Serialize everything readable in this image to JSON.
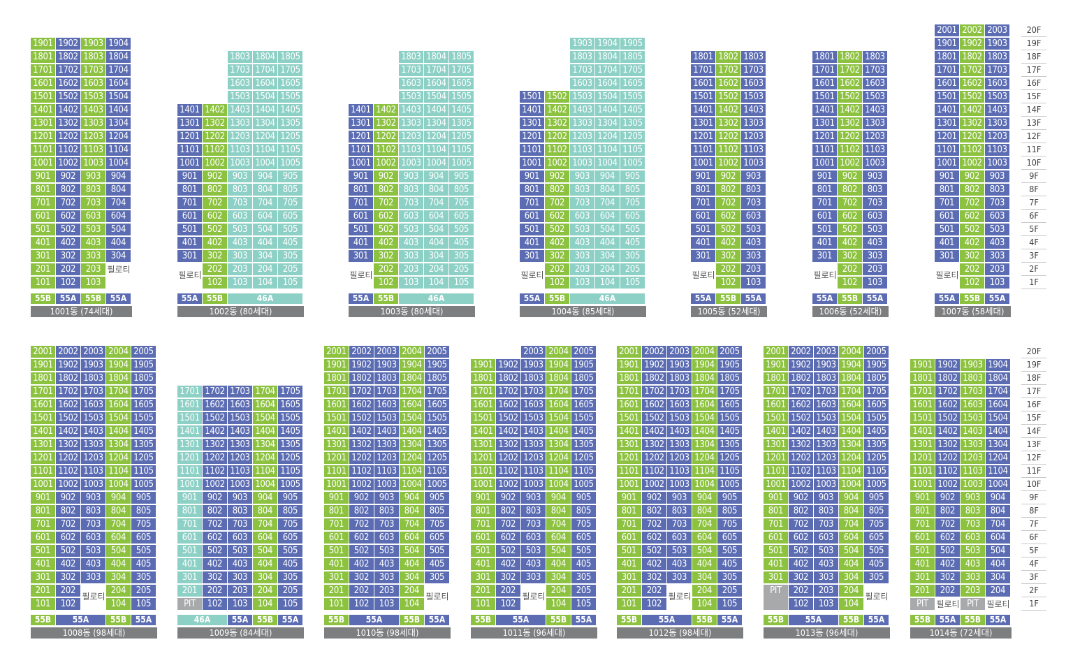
{
  "colors": {
    "g": "#8cc23f",
    "b": "#5b6cb3",
    "t": "#8dd0c5",
    "x": "#a7a9ab",
    "label_bg": "#7d7e80"
  },
  "labels": {
    "piloti": "필로티",
    "pit": "PIT"
  },
  "floor_labels": [
    "20F",
    "19F",
    "18F",
    "17F",
    "16F",
    "15F",
    "14F",
    "13F",
    "12F",
    "11F",
    "10F",
    "9F",
    "8F",
    "7F",
    "6F",
    "5F",
    "4F",
    "3F",
    "2F",
    "1F"
  ],
  "buildings": [
    {
      "name": "1001동 (74세대)",
      "cols": [
        "g",
        "b",
        "g",
        "b"
      ],
      "top": [
        19,
        19,
        19,
        19
      ],
      "bottom": [
        1,
        1,
        1,
        2
      ],
      "types": [
        {
          "t": "55B",
          "c": "g",
          "w": 1
        },
        {
          "t": "55A",
          "c": "b",
          "w": 1
        },
        {
          "t": "55B",
          "c": "g",
          "w": 1
        },
        {
          "t": "55A",
          "c": "b",
          "w": 1
        }
      ],
      "special": [
        {
          "f": 2,
          "c": 3,
          "k": "piloti"
        }
      ]
    },
    {
      "name": "1002동 (80세대)",
      "cols": [
        "b",
        "g",
        "t",
        "t",
        "t"
      ],
      "top": [
        14,
        14,
        18,
        18,
        18
      ],
      "bottom": [
        3,
        1,
        1,
        1,
        1
      ],
      "types": [
        {
          "t": "55A",
          "c": "b",
          "w": 1
        },
        {
          "t": "55B",
          "c": "g",
          "w": 1
        },
        {
          "t": "46A",
          "c": "t",
          "w": 3
        }
      ],
      "special": [
        {
          "f": 2,
          "c": 0,
          "k": "piloti"
        }
      ]
    },
    {
      "name": "1003동 (80세대)",
      "cols": [
        "b",
        "g",
        "t",
        "t",
        "t"
      ],
      "top": [
        14,
        14,
        18,
        18,
        18
      ],
      "bottom": [
        3,
        1,
        1,
        1,
        1
      ],
      "types": [
        {
          "t": "55A",
          "c": "b",
          "w": 1
        },
        {
          "t": "55B",
          "c": "g",
          "w": 1
        },
        {
          "t": "46A",
          "c": "t",
          "w": 3
        }
      ],
      "special": [
        {
          "f": 2,
          "c": 0,
          "k": "piloti"
        }
      ]
    },
    {
      "name": "1004동 (85세대)",
      "cols": [
        "b",
        "g",
        "t",
        "t",
        "t"
      ],
      "top": [
        15,
        15,
        19,
        19,
        19
      ],
      "bottom": [
        3,
        1,
        1,
        1,
        1
      ],
      "types": [
        {
          "t": "55A",
          "c": "b",
          "w": 1
        },
        {
          "t": "55B",
          "c": "g",
          "w": 1
        },
        {
          "t": "46A",
          "c": "t",
          "w": 3
        }
      ],
      "special": [
        {
          "f": 2,
          "c": 0,
          "k": "piloti"
        }
      ]
    },
    {
      "name": "1005동 (52세대)",
      "cols": [
        "b",
        "g",
        "b"
      ],
      "top": [
        18,
        18,
        18
      ],
      "bottom": [
        3,
        1,
        1
      ],
      "types": [
        {
          "t": "55A",
          "c": "b",
          "w": 1
        },
        {
          "t": "55B",
          "c": "g",
          "w": 1
        },
        {
          "t": "55A",
          "c": "b",
          "w": 1
        }
      ],
      "special": [
        {
          "f": 2,
          "c": 0,
          "k": "piloti"
        }
      ]
    },
    {
      "name": "1006동 (52세대)",
      "cols": [
        "b",
        "g",
        "b"
      ],
      "top": [
        18,
        18,
        18
      ],
      "bottom": [
        3,
        1,
        1
      ],
      "types": [
        {
          "t": "55A",
          "c": "b",
          "w": 1
        },
        {
          "t": "55B",
          "c": "g",
          "w": 1
        },
        {
          "t": "55A",
          "c": "b",
          "w": 1
        }
      ],
      "special": [
        {
          "f": 2,
          "c": 0,
          "k": "piloti"
        }
      ]
    },
    {
      "name": "1007동 (58세대)",
      "cols": [
        "b",
        "g",
        "b"
      ],
      "top": [
        20,
        20,
        20
      ],
      "bottom": [
        3,
        1,
        1
      ],
      "types": [
        {
          "t": "55A",
          "c": "b",
          "w": 1
        },
        {
          "t": "55B",
          "c": "g",
          "w": 1
        },
        {
          "t": "55A",
          "c": "b",
          "w": 1
        }
      ],
      "special": [
        {
          "f": 2,
          "c": 0,
          "k": "piloti"
        }
      ]
    },
    {
      "name": "1008동 (98세대)",
      "cols": [
        "g",
        "b",
        "b",
        "g",
        "b"
      ],
      "top": [
        20,
        20,
        20,
        20,
        20
      ],
      "bottom": [
        1,
        1,
        3,
        1,
        1
      ],
      "types": [
        {
          "t": "55B",
          "c": "g",
          "w": 1
        },
        {
          "t": "55A",
          "c": "b",
          "w": 2
        },
        {
          "t": "55B",
          "c": "g",
          "w": 1
        },
        {
          "t": "55A",
          "c": "b",
          "w": 1
        }
      ],
      "special": [
        {
          "f": 2,
          "c": 2,
          "k": "piloti"
        }
      ]
    },
    {
      "name": "1009동 (84세대)",
      "cols": [
        "t",
        "b",
        "b",
        "g",
        "b"
      ],
      "top": [
        17,
        17,
        17,
        17,
        17
      ],
      "bottom": [
        1,
        1,
        1,
        1,
        1
      ],
      "types": [
        {
          "t": "46A",
          "c": "t",
          "w": 2
        },
        {
          "t": "55A",
          "c": "b",
          "w": 1
        },
        {
          "t": "55B",
          "c": "g",
          "w": 1
        },
        {
          "t": "55A",
          "c": "b",
          "w": 1
        }
      ],
      "special": [
        {
          "f": 1,
          "c": 0,
          "k": "pit"
        }
      ]
    },
    {
      "name": "1010동 (98세대)",
      "cols": [
        "g",
        "b",
        "b",
        "g",
        "b"
      ],
      "top": [
        20,
        20,
        20,
        20,
        20
      ],
      "bottom": [
        1,
        1,
        1,
        1,
        3
      ],
      "types": [
        {
          "t": "55B",
          "c": "g",
          "w": 1
        },
        {
          "t": "55A",
          "c": "b",
          "w": 2
        },
        {
          "t": "55B",
          "c": "g",
          "w": 1
        },
        {
          "t": "55A",
          "c": "b",
          "w": 1
        }
      ],
      "special": [
        {
          "f": 2,
          "c": 4,
          "k": "piloti"
        }
      ]
    },
    {
      "name": "1011동 (96세대)",
      "cols": [
        "g",
        "b",
        "b",
        "g",
        "b"
      ],
      "top": [
        19,
        19,
        20,
        20,
        20
      ],
      "bottom": [
        1,
        1,
        3,
        1,
        1
      ],
      "types": [
        {
          "t": "55B",
          "c": "g",
          "w": 1
        },
        {
          "t": "55A",
          "c": "b",
          "w": 2
        },
        {
          "t": "55B",
          "c": "g",
          "w": 1
        },
        {
          "t": "55A",
          "c": "b",
          "w": 1
        }
      ],
      "special": [
        {
          "f": 2,
          "c": 2,
          "k": "piloti"
        }
      ]
    },
    {
      "name": "1012동 (98세대)",
      "cols": [
        "g",
        "b",
        "b",
        "g",
        "b"
      ],
      "top": [
        20,
        20,
        20,
        20,
        20
      ],
      "bottom": [
        1,
        1,
        3,
        1,
        1
      ],
      "types": [
        {
          "t": "55B",
          "c": "g",
          "w": 1
        },
        {
          "t": "55A",
          "c": "b",
          "w": 2
        },
        {
          "t": "55B",
          "c": "g",
          "w": 1
        },
        {
          "t": "55A",
          "c": "b",
          "w": 1
        }
      ],
      "special": [
        {
          "f": 2,
          "c": 2,
          "k": "piloti"
        }
      ]
    },
    {
      "name": "1013동 (96세대)",
      "cols": [
        "g",
        "b",
        "b",
        "g",
        "b"
      ],
      "top": [
        20,
        20,
        20,
        20,
        20
      ],
      "bottom": [
        3,
        1,
        1,
        1,
        3
      ],
      "types": [
        {
          "t": "55B",
          "c": "g",
          "w": 1
        },
        {
          "t": "55A",
          "c": "b",
          "w": 2
        },
        {
          "t": "55B",
          "c": "g",
          "w": 1
        },
        {
          "t": "55A",
          "c": "b",
          "w": 1
        }
      ],
      "special": [
        {
          "f": 2,
          "c": 0,
          "k": "pit"
        },
        {
          "f": 2,
          "c": 4,
          "k": "piloti"
        }
      ]
    },
    {
      "name": "1014동 (72세대)",
      "cols": [
        "g",
        "b",
        "g",
        "b"
      ],
      "top": [
        19,
        19,
        19,
        19
      ],
      "bottom": [
        1,
        1,
        1,
        1
      ],
      "types": [
        {
          "t": "55B",
          "c": "g",
          "w": 1
        },
        {
          "t": "55A",
          "c": "b",
          "w": 1
        },
        {
          "t": "55B",
          "c": "g",
          "w": 1
        },
        {
          "t": "55A",
          "c": "b",
          "w": 1
        }
      ],
      "special": [
        {
          "f": 1,
          "c": 0,
          "k": "pit"
        },
        {
          "f": 1,
          "c": 1,
          "k": "piloti"
        },
        {
          "f": 1,
          "c": 2,
          "k": "pit"
        },
        {
          "f": 1,
          "c": 3,
          "k": "piloti"
        }
      ]
    }
  ]
}
